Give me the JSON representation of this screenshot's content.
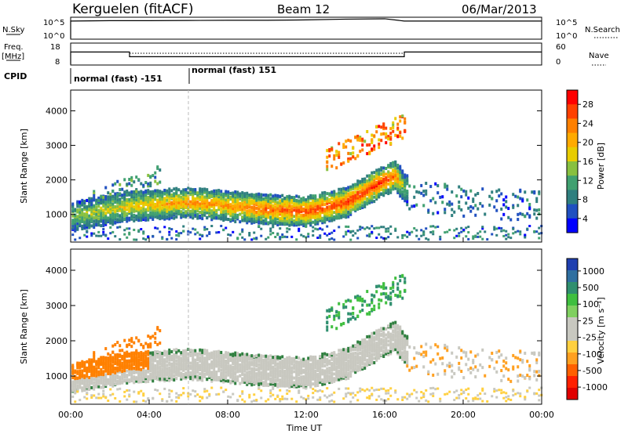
{
  "header": {
    "station": "Kerguelen (fitACF)",
    "beam": "Beam 12",
    "date": "06/Mar/2013"
  },
  "strips": {
    "nsky": {
      "left_label": "N.Sky",
      "right_label": "N.Search",
      "tick_top_left": "10^5",
      "tick_bottom_left": "10^0",
      "tick_top_right": "10^5",
      "tick_bottom_right": "10^0"
    },
    "freq": {
      "left_label_1": "Freq.",
      "left_label_2": "[MHz]",
      "right_label": "Nave",
      "ticks_left": [
        "18",
        "8"
      ],
      "ticks_right": [
        "60",
        "0"
      ]
    },
    "cpid": {
      "label": "CPID",
      "segments": [
        "normal (fast) -151",
        "normal (fast) 151"
      ]
    }
  },
  "panels": {
    "power": {
      "ylabel": "Slant Range [km]",
      "cbar_label": "Power [dB]",
      "cbar_ticks": [
        "28",
        "24",
        "20",
        "16",
        "12",
        "8",
        "4"
      ],
      "cbar_colors": [
        "#ff0000",
        "#ff4000",
        "#ff8000",
        "#ffaa00",
        "#e8cc00",
        "#88c040",
        "#40a070",
        "#2f7f7f",
        "#2050c0",
        "#0000ff"
      ]
    },
    "velocity": {
      "ylabel": "Slant Range [km]",
      "cbar_label": "Velocity [m s⁻¹]",
      "cbar_ticks": [
        "1000",
        "500",
        "100",
        "25",
        "-25",
        "-100",
        "-500",
        "-1000"
      ],
      "cbar_colors": [
        "#1f3fb0",
        "#2f6fa0",
        "#2f8f6f",
        "#3fbf3f",
        "#80d060",
        "#c8c8c0",
        "#c8c8c0",
        "#ffd040",
        "#ffa020",
        "#ff6000",
        "#ff2000",
        "#e00000"
      ]
    },
    "yticks": [
      "1000",
      "2000",
      "3000",
      "4000"
    ],
    "xticks": [
      "00:00",
      "04:00",
      "08:00",
      "12:00",
      "16:00",
      "20:00",
      "00:00"
    ],
    "xlabel": "Time UT"
  },
  "chart_data": [
    {
      "type": "line",
      "title": "N.Sky / N.Search",
      "x": [
        0,
        2,
        4,
        6,
        8,
        10,
        12,
        14,
        16,
        17,
        18,
        20,
        22,
        24
      ],
      "series": [
        {
          "name": "N.Sky",
          "values": [
            4.6,
            4.7,
            4.7,
            4.75,
            4.8,
            4.8,
            4.9,
            5.1,
            5.2,
            4.6,
            4.6,
            4.6,
            4.6,
            4.6
          ]
        }
      ]
    },
    {
      "type": "line",
      "title": "Freq / Nave",
      "x": [
        0,
        3,
        6,
        10,
        14,
        17,
        20,
        24
      ],
      "series": [
        {
          "name": "Freq.",
          "values": [
            14.5,
            12,
            12,
            12,
            12,
            14.5,
            14.5,
            14.5
          ]
        },
        {
          "name": "Nave",
          "values": [
            35,
            35,
            35,
            35,
            35,
            35,
            35,
            35
          ]
        }
      ]
    },
    {
      "type": "heatmap",
      "title": "Power [dB]",
      "xlabel": "Time UT",
      "ylabel": "Slant Range [km]",
      "xlim": [
        0,
        24
      ],
      "ylim": [
        200,
        4600
      ],
      "band_ridge": [
        {
          "t": 0,
          "km": 1000,
          "db": 14
        },
        {
          "t": 3,
          "km": 1300,
          "db": 18
        },
        {
          "t": 6,
          "km": 1400,
          "db": 22
        },
        {
          "t": 8,
          "km": 1300,
          "db": 22
        },
        {
          "t": 10,
          "km": 1200,
          "db": 24
        },
        {
          "t": 12,
          "km": 1150,
          "db": 26
        },
        {
          "t": 14,
          "km": 1400,
          "db": 26
        },
        {
          "t": 15.5,
          "km": 1900,
          "db": 28
        },
        {
          "t": 16.5,
          "km": 2200,
          "db": 24
        },
        {
          "t": 17,
          "km": 1800,
          "db": 12
        }
      ]
    },
    {
      "type": "heatmap",
      "title": "Velocity [m s-1]",
      "xlabel": "Time UT",
      "ylabel": "Slant Range [km]",
      "xlim": [
        0,
        24
      ],
      "ylim": [
        200,
        4600
      ],
      "band_ridge": [
        {
          "t": 1,
          "km": 1500,
          "v": -300
        },
        {
          "t": 3,
          "km": 2000,
          "v": -300
        },
        {
          "t": 6,
          "km": 1400,
          "v": 0
        },
        {
          "t": 10,
          "km": 1300,
          "v": 0
        },
        {
          "t": 14,
          "km": 1700,
          "v": 0
        },
        {
          "t": 16.5,
          "km": 2200,
          "v": 0
        },
        {
          "t": 15,
          "km": 3000,
          "v": 100
        }
      ]
    }
  ]
}
